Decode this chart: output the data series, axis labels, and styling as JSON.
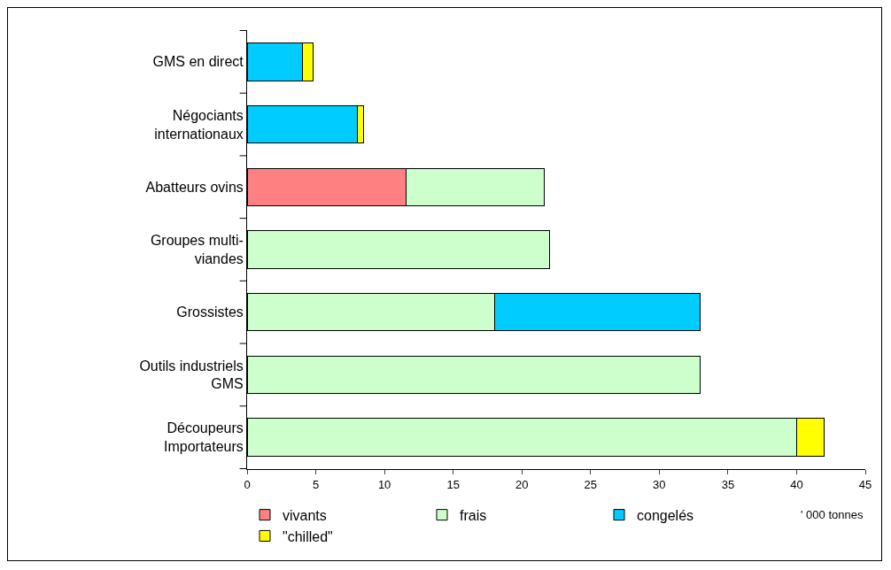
{
  "chart_data": {
    "type": "bar",
    "orientation": "horizontal",
    "stacked": true,
    "categories": [
      "GMS en direct",
      "Négociants\ninternationaux",
      "Abatteurs ovins",
      "Groupes multi-\nviandes",
      "Grossistes",
      "Outils industriels\nGMS",
      "Découpeurs\nImportateurs"
    ],
    "series": [
      {
        "name": "vivants",
        "color": "#ff8080",
        "values": [
          null,
          null,
          11.6,
          null,
          null,
          null,
          null
        ]
      },
      {
        "name": "frais",
        "color": "#ccffcc",
        "values": [
          null,
          null,
          10.0,
          22,
          18,
          33,
          40
        ]
      },
      {
        "name": "congelés",
        "color": "#00ccff",
        "values": [
          4,
          8,
          null,
          null,
          15,
          null,
          null
        ]
      },
      {
        "name": "\"chilled\"",
        "color": "#ffff00",
        "values": [
          0.8,
          0.5,
          null,
          null,
          null,
          null,
          2
        ]
      }
    ],
    "xlim": [
      0,
      45
    ],
    "xticks": [
      0,
      5,
      10,
      15,
      20,
      25,
      30,
      35,
      40,
      45
    ],
    "xlabel": "' 000 tonnes",
    "legend": "bottom",
    "grid": false
  }
}
